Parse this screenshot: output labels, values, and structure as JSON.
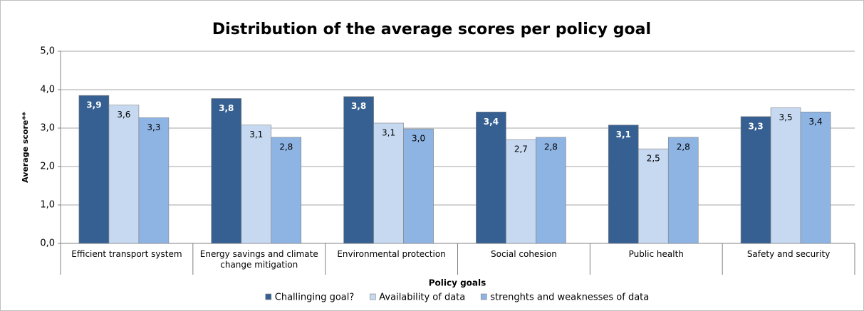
{
  "chart_data": {
    "type": "bar",
    "title": "Distribution of the average scores per policy goal",
    "x_label": "Policy goals",
    "y_label": "Average score**",
    "categories": [
      "Efficient transport system",
      "Energy savings and climate change mitigation",
      "Environmental protection",
      "Social cohesion",
      "Public health",
      "Safety and security"
    ],
    "series": [
      {
        "name": "Challinging goal?",
        "color": "#376092",
        "values": [
          3.85,
          3.77,
          3.82,
          3.42,
          3.08,
          3.3
        ],
        "value_labels": [
          "3,9",
          "3,8",
          "3,8",
          "3,4",
          "3,1",
          "3,3"
        ]
      },
      {
        "name": "Availability of data",
        "color": "#c6d9f1",
        "values": [
          3.6,
          3.08,
          3.13,
          2.7,
          2.46,
          3.53
        ],
        "value_labels": [
          "3,6",
          "3,1",
          "3,1",
          "2,7",
          "2,5",
          "3,5"
        ]
      },
      {
        "name": "strenghts and weaknesses of data",
        "color": "#8eb4e3",
        "values": [
          3.27,
          2.76,
          2.98,
          2.76,
          2.76,
          3.42
        ],
        "value_labels": [
          "3,3",
          "2,8",
          "3,0",
          "2,8",
          "2,8",
          "3,4"
        ]
      }
    ],
    "ylim": [
      0,
      5
    ],
    "yticks": [
      {
        "value": 0,
        "label": "0,0"
      },
      {
        "value": 1,
        "label": "1,0"
      },
      {
        "value": 2,
        "label": "2,0"
      },
      {
        "value": 3,
        "label": "3,0"
      },
      {
        "value": 4,
        "label": "4,0"
      },
      {
        "value": 5,
        "label": "5,0"
      }
    ],
    "grid": true,
    "legend": "bottom"
  }
}
